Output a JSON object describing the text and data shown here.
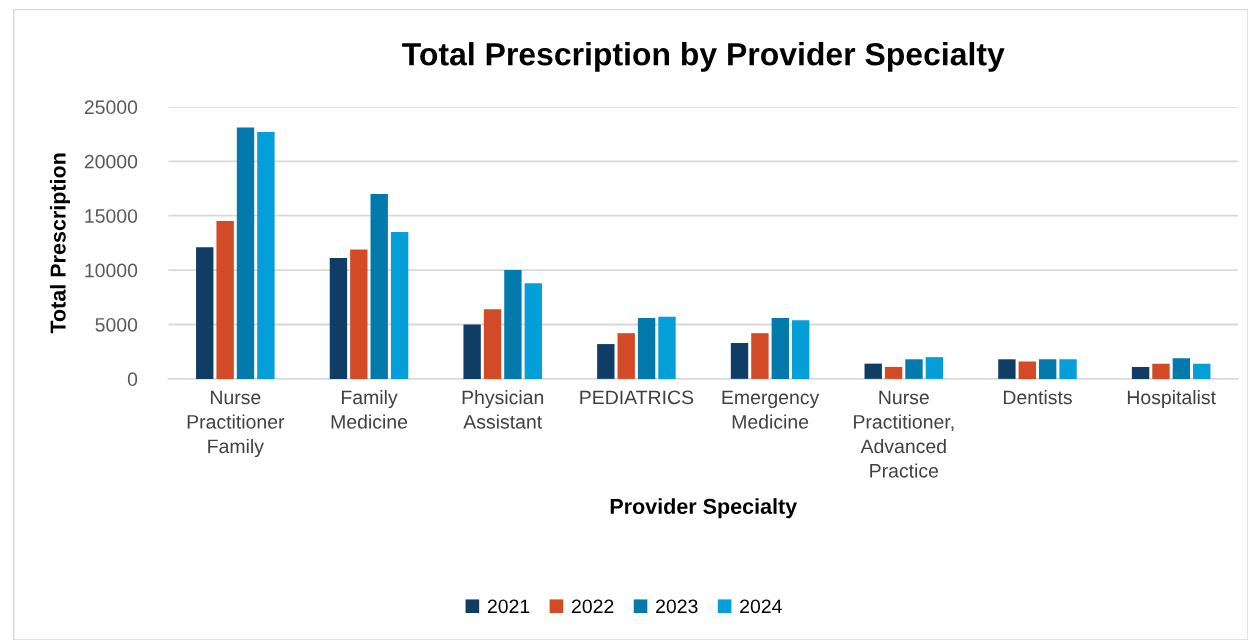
{
  "chart_data": {
    "type": "bar",
    "title": "Total Prescription by Provider Specialty",
    "xlabel": "Provider Specialty",
    "ylabel": "Total Prescription",
    "categories": [
      "Nurse\nPractitioner\nFamily",
      "Family\nMedicine",
      "Physician\nAssistant",
      "PEDIATRICS",
      "Emergency\nMedicine",
      "Nurse\nPractitioner,\nAdvanced\nPractice",
      "Dentists",
      "Hospitalist"
    ],
    "series": [
      {
        "name": "2021",
        "color": "#0f3d66",
        "values": [
          12100,
          11100,
          5000,
          3200,
          3300,
          1400,
          1800,
          1100
        ]
      },
      {
        "name": "2022",
        "color": "#d34a26",
        "values": [
          14500,
          11900,
          6400,
          4200,
          4200,
          1100,
          1600,
          1400
        ]
      },
      {
        "name": "2023",
        "color": "#047aac",
        "values": [
          23100,
          17000,
          10000,
          5600,
          5600,
          1800,
          1800,
          1900
        ]
      },
      {
        "name": "2024",
        "color": "#049ed8",
        "values": [
          22700,
          13500,
          8800,
          5700,
          5400,
          2000,
          1800,
          1400
        ]
      }
    ],
    "ylim": [
      0,
      25000
    ],
    "yticks": [
      0,
      5000,
      10000,
      15000,
      20000,
      25000
    ],
    "grid": "y",
    "legend": "bottom"
  }
}
